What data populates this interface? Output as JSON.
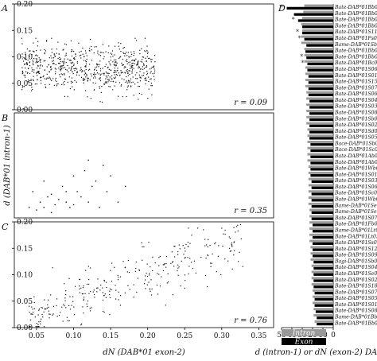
{
  "chart_data": [
    {
      "panel": "A",
      "type": "scatter",
      "r_label": "r = 0.09",
      "ylim": [
        0,
        0.2
      ],
      "yticks": [
        "0.00",
        "0.05",
        "0.10",
        "0.15",
        "0.20"
      ],
      "xlim": [
        0.02,
        0.37
      ],
      "cloud": {
        "x_range": [
          0.03,
          0.21
        ],
        "y_center": 0.078,
        "y_spread": 0.022,
        "n": 700
      }
    },
    {
      "panel": "B",
      "type": "scatter",
      "ylabel": "d (DAB*01 intron-1)",
      "r_label": "r = 0.35",
      "xlim": [
        0.02,
        0.37
      ],
      "ylim": [
        0,
        0.2
      ],
      "points": [
        [
          0.04,
          0.02
        ],
        [
          0.045,
          0.05
        ],
        [
          0.05,
          0.015
        ],
        [
          0.055,
          0.03
        ],
        [
          0.06,
          0.07
        ],
        [
          0.065,
          0.04
        ],
        [
          0.07,
          0.01
        ],
        [
          0.075,
          0.025
        ],
        [
          0.08,
          0.035
        ],
        [
          0.085,
          0.06
        ],
        [
          0.09,
          0.03
        ],
        [
          0.095,
          0.02
        ],
        [
          0.1,
          0.08
        ],
        [
          0.105,
          0.05
        ],
        [
          0.11,
          0.04
        ],
        [
          0.115,
          0.09
        ],
        [
          0.12,
          0.03
        ],
        [
          0.125,
          0.06
        ],
        [
          0.13,
          0.07
        ],
        [
          0.135,
          0.02
        ],
        [
          0.14,
          0.1
        ],
        [
          0.145,
          0.05
        ],
        [
          0.15,
          0.08
        ],
        [
          0.16,
          0.03
        ],
        [
          0.17,
          0.06
        ],
        [
          0.12,
          0.11
        ],
        [
          0.09,
          0.05
        ],
        [
          0.07,
          0.045
        ],
        [
          0.06,
          0.02
        ],
        [
          0.1,
          0.025
        ]
      ]
    },
    {
      "panel": "C",
      "type": "scatter",
      "r_label": "r = 0.76",
      "xlabel": "dN (DAB*01 exon-2)",
      "xticks": [
        "0.05",
        "0.10",
        "0.15",
        "0.20",
        "0.25",
        "0.30",
        "0.35"
      ],
      "yticks": [
        "0.00",
        "0.05",
        "0.10",
        "0.15",
        "0.20"
      ],
      "xlim": [
        0.02,
        0.37
      ],
      "ylim": [
        0,
        0.2
      ],
      "cloud": {
        "x_range": [
          0.04,
          0.33
        ],
        "slope": 0.52,
        "intercept": -0.003,
        "y_spread": 0.025,
        "n": 320
      }
    },
    {
      "panel": "D",
      "type": "bar",
      "xlabel": "d (intron-1) or dN (exon-2) DAB*01",
      "xticks": [
        "50",
        "40",
        "30",
        "20",
        "10",
        "0"
      ],
      "xlim": [
        50,
        0
      ],
      "legend": [
        {
          "name": "Intron",
          "color": "#999999"
        },
        {
          "name": "Exon",
          "color": "#000000"
        }
      ],
      "categories": [
        "Bate-DAB*01Bb04",
        "Bate-DAB*01Bb04",
        "Bate-DAB*01Bb03",
        "Bate-DAB*01Bb02",
        "Bate-DAB*01S11",
        "Bate-DAB*01Fs02",
        "Bame-DAB*01Sb01",
        "Bate-DAB*01Bb04",
        "Bate-DAB*01Bb02",
        "Bate-DAB*01Bc02",
        "Bate-DAB*01S06",
        "Bate-DAB*01S01",
        "Bate-DAB*01S15",
        "Bate-DAB*01S07",
        "Bate-DAB*01S06",
        "Bate-DAB*01S04",
        "Bate-DAB*01S03",
        "Bate-DAB*01S08",
        "Bate-DAB*01Sb02",
        "Bate-DAB*01S02",
        "Bate-DAB*01Sd02",
        "Bate-DAB*01S05",
        "Bace-DAB*01Sb08",
        "Bace-DAB*01Sc07",
        "Bate-DAB*01Ab02",
        "Bate-DAB*01Ab03",
        "Bate-DAB*01Wb02",
        "Bate-DAB*01S01",
        "Bate-DAB*01S03",
        "Bate-DAB*01S06",
        "Bate-DAB*01Sc02",
        "Bate-DAB*01Wb02",
        "Bame-DAB*01Se03",
        "Bame-DAB*01Se06",
        "Bate-DAB*01S07",
        "Bate-DAB*01Fb02",
        "Bame-DAB*01Lt02",
        "Bate-DAB*01Lt03",
        "Bate-DAB*01Ss01",
        "Bate-DAB*01S12",
        "Bate-DAB*01S09",
        "Bagi-DAB*01Sb04",
        "Bate-DAB*01S04",
        "Bate-DAB*01Se03",
        "Bate-DAB*01S02",
        "Bate-DAB*01S18",
        "Bate-DAB*01S07",
        "Bate-DAB*01S05",
        "Bate-DAB*01S01",
        "Bate-DAB*01S08",
        "Bame-DAB*01Bb01",
        "Bate-DAB*01Bb02"
      ],
      "series": [
        {
          "name": "Intron",
          "color": "#999999",
          "values": [
            28,
            29,
            30,
            31,
            30,
            31,
            31,
            28,
            28,
            28,
            27,
            27,
            27,
            27,
            26,
            26,
            26,
            26,
            26,
            26,
            25,
            25,
            25,
            25,
            25,
            25,
            24,
            24,
            24,
            24,
            24,
            24,
            24,
            23,
            23,
            23,
            23,
            23,
            23,
            22,
            22,
            22,
            21,
            21,
            21,
            21,
            20,
            20,
            20,
            19,
            19,
            18
          ]
        },
        {
          "name": "Exon",
          "color": "#000000",
          "values": [
            45,
            38,
            34,
            30,
            30,
            28,
            26,
            27,
            26,
            25,
            25,
            24,
            24,
            24,
            24,
            23,
            23,
            23,
            23,
            23,
            23,
            23,
            22,
            22,
            22,
            22,
            22,
            22,
            21,
            21,
            21,
            21,
            21,
            21,
            21,
            20,
            20,
            20,
            20,
            20,
            20,
            19,
            19,
            19,
            19,
            19,
            18,
            18,
            18,
            17,
            16,
            16
          ]
        }
      ],
      "stars": [
        0,
        2,
        4,
        5,
        8,
        9
      ]
    }
  ]
}
